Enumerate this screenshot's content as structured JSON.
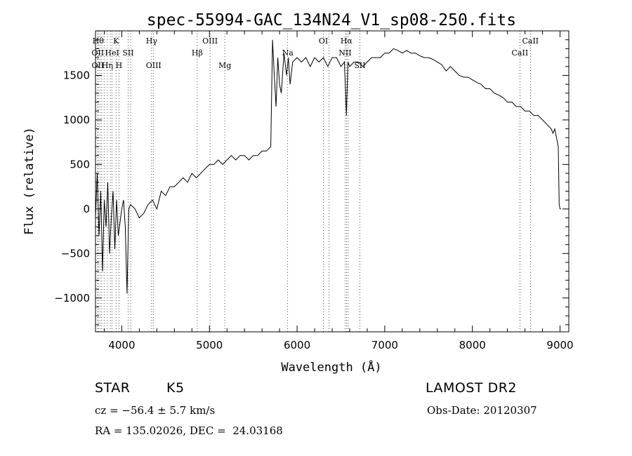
{
  "chart_data": {
    "type": "line",
    "title": "spec-55994-GAC_134N24_V1_sp08-250.fits",
    "xlabel": "Wavelength (Å)",
    "ylabel": "Flux (relative)",
    "xlim": [
      3700,
      9100
    ],
    "ylim": [
      -1380,
      2000
    ],
    "xticks": [
      4000,
      5000,
      6000,
      7000,
      8000,
      9000
    ],
    "yticks": [
      -1000,
      -500,
      0,
      500,
      1000,
      1500
    ],
    "grid": false,
    "series": [
      {
        "x": [
          3700,
          3720,
          3740,
          3760,
          3780,
          3800,
          3820,
          3840,
          3860,
          3880,
          3900,
          3920,
          3940,
          3960,
          3980,
          4000,
          4020,
          4040,
          4060,
          4080,
          4100,
          4150,
          4200,
          4250,
          4300,
          4350,
          4400,
          4450,
          4500,
          4550,
          4600,
          4650,
          4700,
          4750,
          4800,
          4850,
          4900,
          4950,
          5000,
          5050,
          5100,
          5150,
          5200,
          5250,
          5300,
          5350,
          5400,
          5450,
          5500,
          5550,
          5600,
          5650,
          5700,
          5720,
          5740,
          5760,
          5780,
          5800,
          5820,
          5850,
          5880,
          5900,
          5920,
          5950,
          6000,
          6050,
          6100,
          6150,
          6200,
          6250,
          6300,
          6350,
          6400,
          6450,
          6500,
          6540,
          6563,
          6580,
          6600,
          6650,
          6700,
          6750,
          6800,
          6850,
          6900,
          6950,
          7000,
          7050,
          7100,
          7150,
          7200,
          7250,
          7300,
          7350,
          7400,
          7450,
          7500,
          7550,
          7600,
          7650,
          7700,
          7750,
          7800,
          7850,
          7900,
          7950,
          8000,
          8050,
          8100,
          8150,
          8200,
          8250,
          8300,
          8350,
          8400,
          8450,
          8500,
          8550,
          8600,
          8650,
          8700,
          8750,
          8800,
          8850,
          8900,
          8920,
          8940,
          8960,
          8980,
          8990,
          9000,
          9010
        ],
        "y": [
          -100,
          400,
          -300,
          200,
          -700,
          100,
          -200,
          300,
          -500,
          -100,
          200,
          -450,
          100,
          -300,
          -150,
          0,
          100,
          -200,
          -950,
          0,
          50,
          0,
          -100,
          -50,
          50,
          100,
          0,
          200,
          150,
          250,
          250,
          300,
          350,
          300,
          400,
          350,
          400,
          450,
          500,
          500,
          550,
          500,
          550,
          600,
          550,
          600,
          600,
          550,
          600,
          600,
          650,
          650,
          700,
          1900,
          1500,
          1150,
          1700,
          1400,
          1300,
          1750,
          1500,
          1700,
          1400,
          1650,
          1700,
          1650,
          1700,
          1600,
          1700,
          1650,
          1700,
          1600,
          1700,
          1700,
          1600,
          1650,
          1050,
          1650,
          1600,
          1650,
          1650,
          1600,
          1650,
          1700,
          1700,
          1700,
          1750,
          1750,
          1800,
          1780,
          1750,
          1780,
          1750,
          1750,
          1720,
          1700,
          1700,
          1680,
          1650,
          1620,
          1550,
          1600,
          1550,
          1500,
          1480,
          1480,
          1450,
          1420,
          1400,
          1350,
          1350,
          1300,
          1280,
          1250,
          1200,
          1200,
          1150,
          1150,
          1100,
          1100,
          1050,
          1050,
          1000,
          950,
          900,
          850,
          900,
          800,
          700,
          50,
          0,
          0
        ]
      }
    ],
    "lines": [
      {
        "x": 3730,
        "label": "Hθ",
        "row": 0
      },
      {
        "x": 3726,
        "label": "OII",
        "row": 1
      },
      {
        "x": 3727,
        "label": "OII",
        "row": 2
      },
      {
        "x": 3750,
        "label": "",
        "row": 0
      },
      {
        "x": 3771,
        "label": "",
        "row": 0
      },
      {
        "x": 3798,
        "label": "",
        "row": 0
      },
      {
        "x": 3835,
        "label": "Hη",
        "row": 2
      },
      {
        "x": 3869,
        "label": "",
        "row": 0
      },
      {
        "x": 3889,
        "label": "HeI",
        "row": 1
      },
      {
        "x": 3934,
        "label": "K",
        "row": 0
      },
      {
        "x": 3968,
        "label": "H",
        "row": 2
      },
      {
        "x": 4072,
        "label": "SII",
        "row": 1
      },
      {
        "x": 4102,
        "label": "",
        "row": 0
      },
      {
        "x": 4340,
        "label": "Hγ",
        "row": 0
      },
      {
        "x": 4363,
        "label": "OIII",
        "row": 2
      },
      {
        "x": 4861,
        "label": "Hβ",
        "row": 1
      },
      {
        "x": 5007,
        "label": "OIII",
        "row": 0
      },
      {
        "x": 5175,
        "label": "Mg",
        "row": 2
      },
      {
        "x": 5893,
        "label": "Na",
        "row": 1
      },
      {
        "x": 6300,
        "label": "OI",
        "row": 0
      },
      {
        "x": 6363,
        "label": "",
        "row": 0
      },
      {
        "x": 6548,
        "label": "NII",
        "row": 1
      },
      {
        "x": 6563,
        "label": "Hα",
        "row": 0
      },
      {
        "x": 6583,
        "label": "",
        "row": 0
      },
      {
        "x": 6716,
        "label": "SII",
        "row": 2
      },
      {
        "x": 8542,
        "label": "CaII",
        "row": 1
      },
      {
        "x": 8662,
        "label": "CaII",
        "row": 0
      }
    ]
  },
  "footer": {
    "class_label": "STAR",
    "subclass": "K5",
    "survey": "LAMOST DR2",
    "redshift": "cz = −56.4 ± 5.7 km/s",
    "obs_date": "Obs-Date: 20120307",
    "coords": "RA = 135.02026, DEC =  24.03168"
  }
}
